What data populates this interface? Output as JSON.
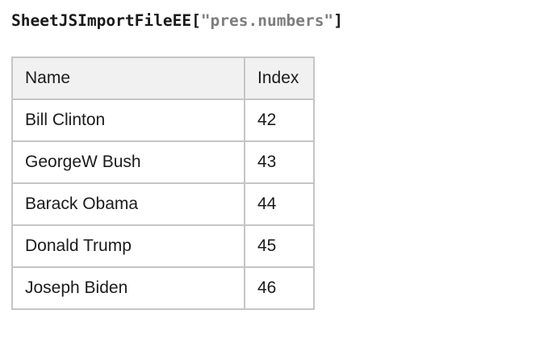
{
  "title": {
    "code_prefix": "SheetJSImportFileEE",
    "bracket_open": "[",
    "string_literal": "\"pres.numbers\"",
    "bracket_close": "]",
    "text_color": "#1a1a1a",
    "string_color": "#7d7d7d"
  },
  "table": {
    "columns": [
      {
        "key": "name",
        "label": "Name"
      },
      {
        "key": "index",
        "label": "Index"
      }
    ],
    "rows": [
      {
        "name": "Bill Clinton",
        "index": "42"
      },
      {
        "name": "GeorgeW Bush",
        "index": "43"
      },
      {
        "name": "Barack Obama",
        "index": "44"
      },
      {
        "name": "Donald Trump",
        "index": "45"
      },
      {
        "name": "Joseph Biden",
        "index": "46"
      }
    ],
    "header_bg": "#f1f1f1",
    "border_color": "#c5c5c5"
  }
}
